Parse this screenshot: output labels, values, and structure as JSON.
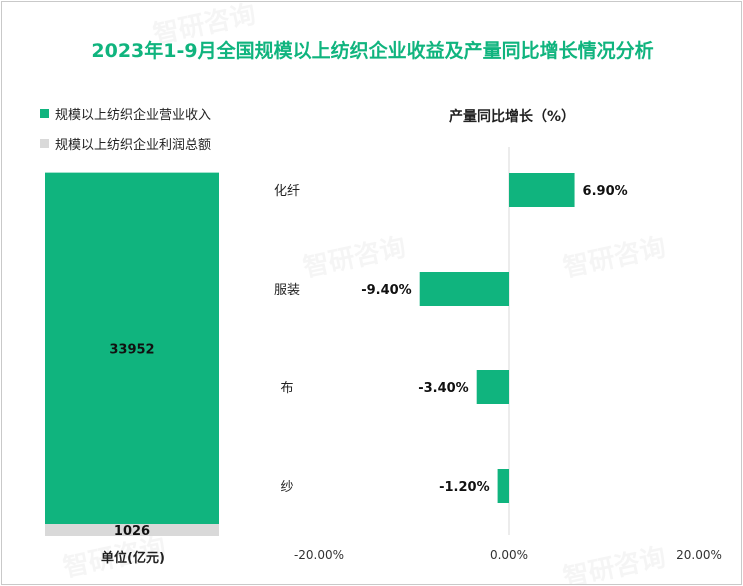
{
  "chart_data": [
    {
      "type": "stacked-bar",
      "title": "2023年1-9月全国规模以上纺织企业收益及产量同比增长情况分析",
      "unit_label": "单位(亿元)",
      "series": [
        {
          "name": "规模以上纺织企业营业收入",
          "value": 33952,
          "label": "33952",
          "color": "#10b47e"
        },
        {
          "name": "规模以上纺织企业利润总额",
          "value": 1026,
          "label": "1026",
          "color": "#d9d9d9"
        }
      ]
    },
    {
      "type": "bar",
      "orientation": "horizontal",
      "title": "产量同比增长（%）",
      "categories": [
        "化纤",
        "服装",
        "布",
        "纱"
      ],
      "values": [
        6.9,
        -9.4,
        -3.4,
        -1.2
      ],
      "value_labels": [
        "6.90%",
        "-9.40%",
        "-3.40%",
        "-1.20%"
      ],
      "xlim": [
        -20,
        20
      ],
      "x_tick_labels": [
        "-20.00%",
        "0.00%",
        "20.00%"
      ],
      "x_ticks": [
        -20,
        0,
        20
      ],
      "color": "#10b47e"
    }
  ],
  "colors": {
    "title": "#10b47e",
    "accent": "#10b47e",
    "secondary": "#d9d9d9"
  },
  "watermark": "智研咨询"
}
